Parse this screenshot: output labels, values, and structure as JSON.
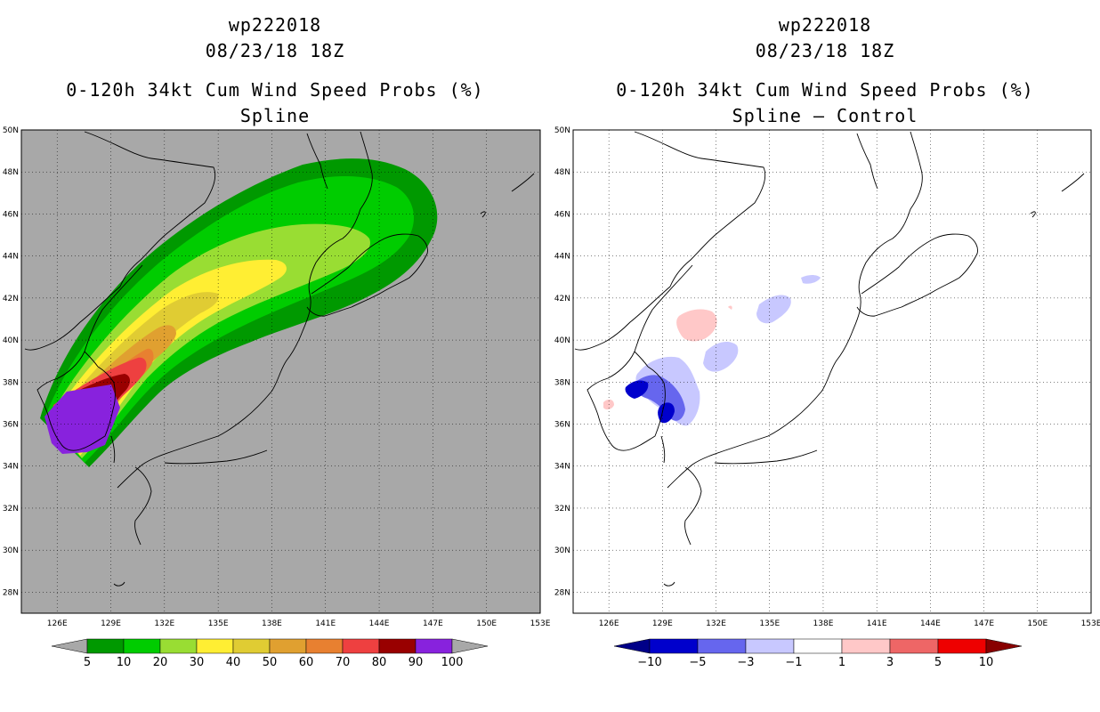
{
  "left": {
    "title": {
      "storm_id": "wp222018",
      "datetime": "08/23/18 18Z",
      "product": "0-120h 34kt Cum Wind Speed Probs (%)",
      "subtitle": "Spline"
    },
    "background": "#a8a8a8",
    "colorbar": {
      "labels": [
        "5",
        "10",
        "20",
        "30",
        "40",
        "50",
        "60",
        "70",
        "80",
        "90",
        "100"
      ],
      "colors": [
        "#009900",
        "#00cc00",
        "#99dd33",
        "#ffee33",
        "#e0cc33",
        "#e0a030",
        "#e88030",
        "#ee4040",
        "#990000",
        "#8822dd"
      ],
      "under_color": "#a8a8a8",
      "over_color": "#a8a8a8"
    }
  },
  "right": {
    "title": {
      "storm_id": "wp222018",
      "datetime": "08/23/18 18Z",
      "product": "0-120h 34kt Cum Wind Speed Probs (%)",
      "subtitle": "Spline – Control"
    },
    "background": "#ffffff",
    "colorbar": {
      "labels": [
        "−10",
        "−5",
        "−3",
        "−1",
        "1",
        "3",
        "5",
        "10"
      ],
      "colors": [
        "#0000cc",
        "#6666ee",
        "#c8c8ff",
        "#ffffff",
        "#ffc8c8",
        "#ee6666",
        "#ee0000"
      ],
      "under_color": "#000088",
      "over_color": "#880000"
    }
  },
  "axes": {
    "lon_labels": [
      "126E",
      "129E",
      "132E",
      "135E",
      "138E",
      "141E",
      "144E",
      "147E",
      "150E",
      "153E"
    ],
    "lat_labels": [
      "28N",
      "30N",
      "32N",
      "34N",
      "36N",
      "38N",
      "40N",
      "42N",
      "44N",
      "46N",
      "48N",
      "50N"
    ]
  }
}
